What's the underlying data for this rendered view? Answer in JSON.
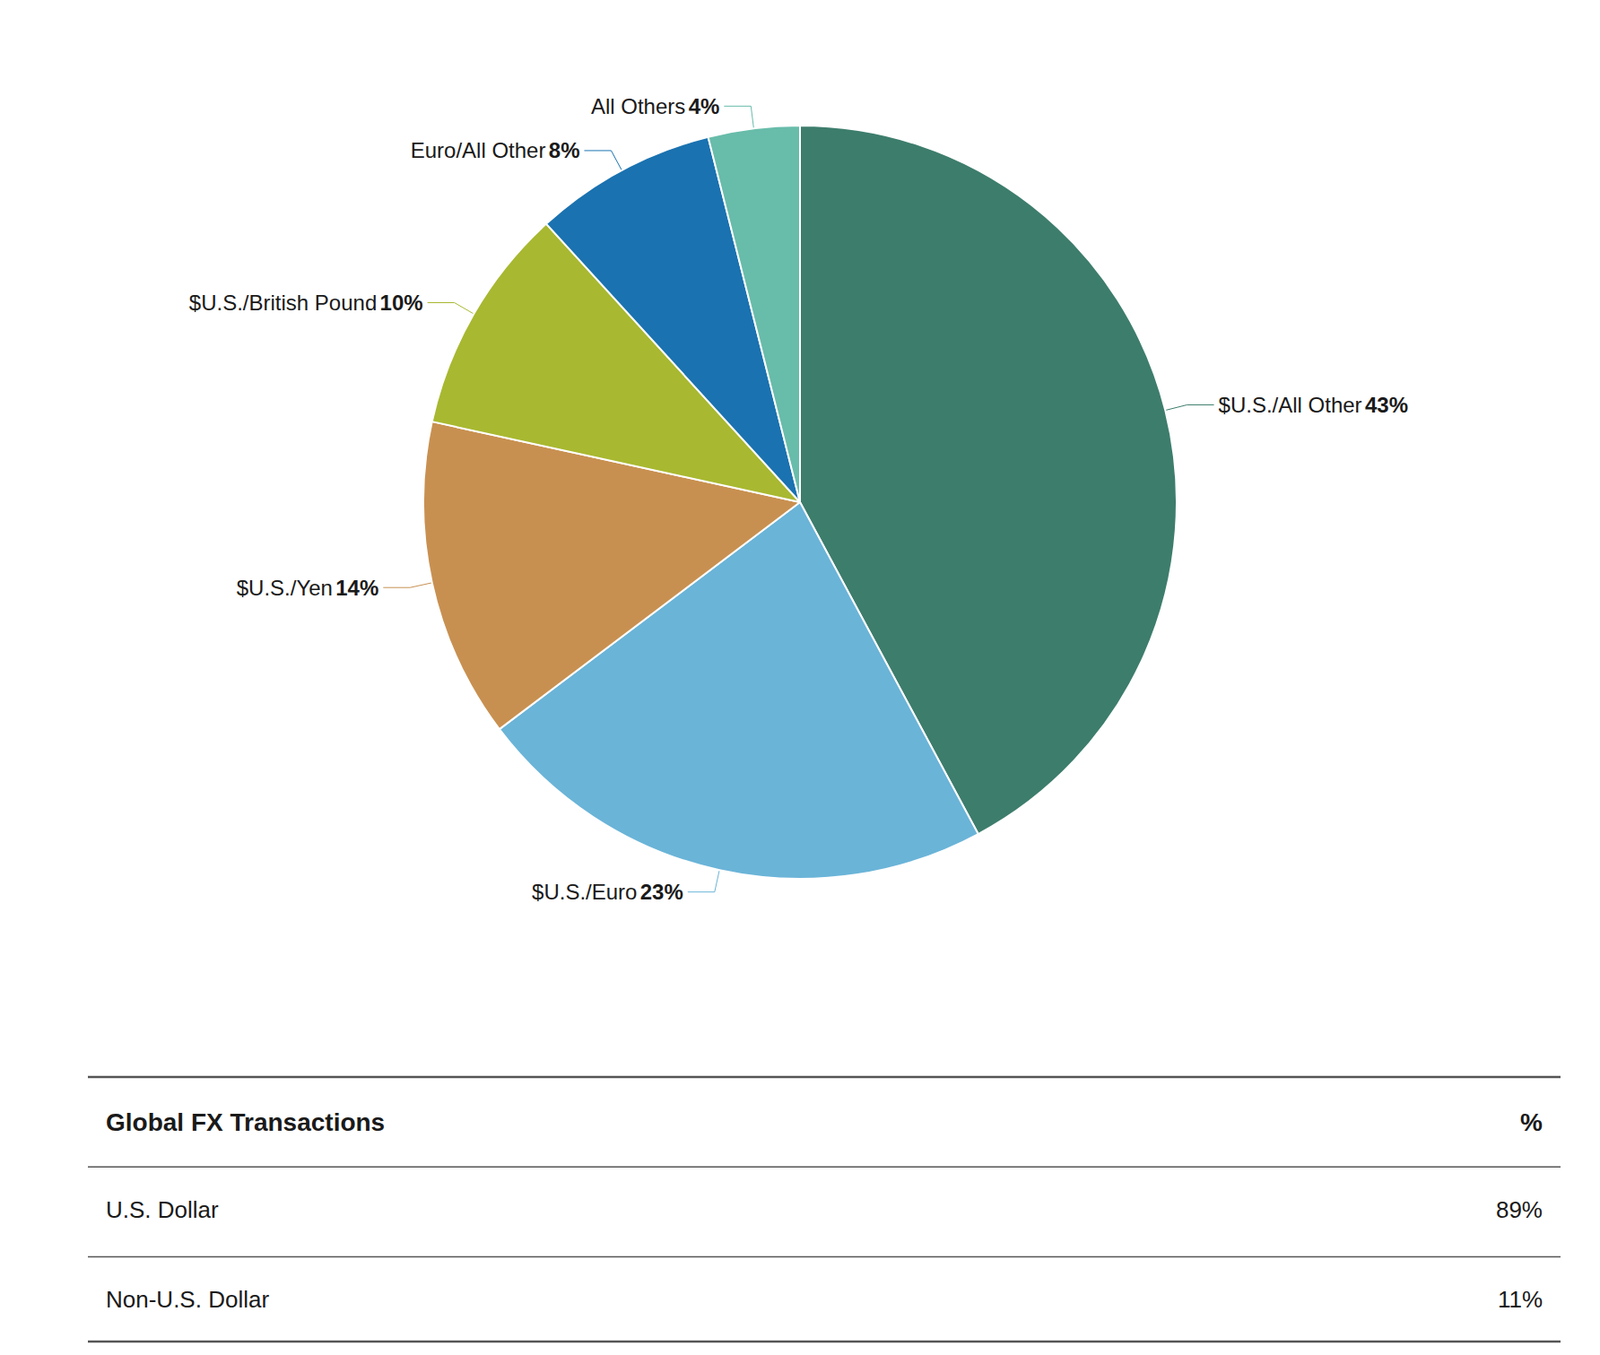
{
  "chart_data": {
    "type": "pie",
    "categories": [
      "$U.S./All Other",
      "$U.S./Euro",
      "$U.S./Yen",
      "$U.S./British Pound",
      "Euro/All Other",
      "All Others"
    ],
    "values": [
      43,
      23,
      14,
      10,
      8,
      4
    ],
    "value_labels": [
      "43%",
      "23%",
      "14%",
      "10%",
      "8%",
      "4%"
    ],
    "colors": [
      "#3d7d6c",
      "#6ab4d8",
      "#c89050",
      "#a8b830",
      "#1a72b0",
      "#68bcaa"
    ],
    "legend": false,
    "table": {
      "title": "Global FX Transactions",
      "value_title": "%",
      "categories": [
        "U.S. Dollar",
        "Non-U.S. Dollar"
      ],
      "values": [
        89,
        11
      ],
      "value_labels": [
        "89%",
        "11%"
      ]
    }
  }
}
